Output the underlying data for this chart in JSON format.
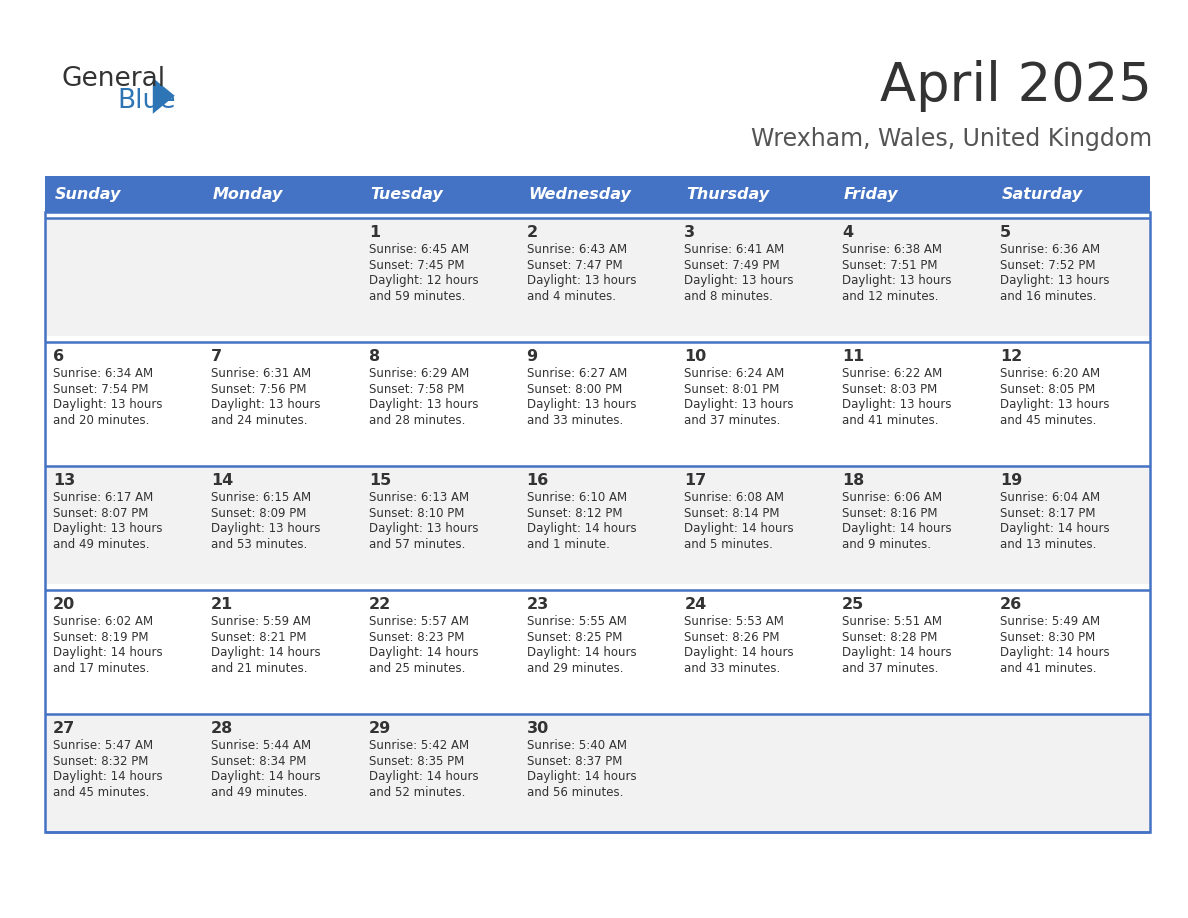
{
  "title": "April 2025",
  "subtitle": "Wrexham, Wales, United Kingdom",
  "days_of_week": [
    "Sunday",
    "Monday",
    "Tuesday",
    "Wednesday",
    "Thursday",
    "Friday",
    "Saturday"
  ],
  "header_bg": "#4472C4",
  "header_text": "#FFFFFF",
  "row_bg_light": "#F2F2F2",
  "row_bg_white": "#FFFFFF",
  "border_color": "#4472C4",
  "text_color": "#333333",
  "title_color": "#333333",
  "subtitle_color": "#555555",
  "logo_black": "#333333",
  "logo_blue": "#2E75B6",
  "weeks": [
    [
      {
        "day": null,
        "sunrise": null,
        "sunset": null,
        "daylight": null
      },
      {
        "day": null,
        "sunrise": null,
        "sunset": null,
        "daylight": null
      },
      {
        "day": 1,
        "sunrise": "6:45 AM",
        "sunset": "7:45 PM",
        "daylight": "12 hours and 59 minutes"
      },
      {
        "day": 2,
        "sunrise": "6:43 AM",
        "sunset": "7:47 PM",
        "daylight": "13 hours and 4 minutes"
      },
      {
        "day": 3,
        "sunrise": "6:41 AM",
        "sunset": "7:49 PM",
        "daylight": "13 hours and 8 minutes"
      },
      {
        "day": 4,
        "sunrise": "6:38 AM",
        "sunset": "7:51 PM",
        "daylight": "13 hours and 12 minutes"
      },
      {
        "day": 5,
        "sunrise": "6:36 AM",
        "sunset": "7:52 PM",
        "daylight": "13 hours and 16 minutes"
      }
    ],
    [
      {
        "day": 6,
        "sunrise": "6:34 AM",
        "sunset": "7:54 PM",
        "daylight": "13 hours and 20 minutes"
      },
      {
        "day": 7,
        "sunrise": "6:31 AM",
        "sunset": "7:56 PM",
        "daylight": "13 hours and 24 minutes"
      },
      {
        "day": 8,
        "sunrise": "6:29 AM",
        "sunset": "7:58 PM",
        "daylight": "13 hours and 28 minutes"
      },
      {
        "day": 9,
        "sunrise": "6:27 AM",
        "sunset": "8:00 PM",
        "daylight": "13 hours and 33 minutes"
      },
      {
        "day": 10,
        "sunrise": "6:24 AM",
        "sunset": "8:01 PM",
        "daylight": "13 hours and 37 minutes"
      },
      {
        "day": 11,
        "sunrise": "6:22 AM",
        "sunset": "8:03 PM",
        "daylight": "13 hours and 41 minutes"
      },
      {
        "day": 12,
        "sunrise": "6:20 AM",
        "sunset": "8:05 PM",
        "daylight": "13 hours and 45 minutes"
      }
    ],
    [
      {
        "day": 13,
        "sunrise": "6:17 AM",
        "sunset": "8:07 PM",
        "daylight": "13 hours and 49 minutes"
      },
      {
        "day": 14,
        "sunrise": "6:15 AM",
        "sunset": "8:09 PM",
        "daylight": "13 hours and 53 minutes"
      },
      {
        "day": 15,
        "sunrise": "6:13 AM",
        "sunset": "8:10 PM",
        "daylight": "13 hours and 57 minutes"
      },
      {
        "day": 16,
        "sunrise": "6:10 AM",
        "sunset": "8:12 PM",
        "daylight": "14 hours and 1 minute"
      },
      {
        "day": 17,
        "sunrise": "6:08 AM",
        "sunset": "8:14 PM",
        "daylight": "14 hours and 5 minutes"
      },
      {
        "day": 18,
        "sunrise": "6:06 AM",
        "sunset": "8:16 PM",
        "daylight": "14 hours and 9 minutes"
      },
      {
        "day": 19,
        "sunrise": "6:04 AM",
        "sunset": "8:17 PM",
        "daylight": "14 hours and 13 minutes"
      }
    ],
    [
      {
        "day": 20,
        "sunrise": "6:02 AM",
        "sunset": "8:19 PM",
        "daylight": "14 hours and 17 minutes"
      },
      {
        "day": 21,
        "sunrise": "5:59 AM",
        "sunset": "8:21 PM",
        "daylight": "14 hours and 21 minutes"
      },
      {
        "day": 22,
        "sunrise": "5:57 AM",
        "sunset": "8:23 PM",
        "daylight": "14 hours and 25 minutes"
      },
      {
        "day": 23,
        "sunrise": "5:55 AM",
        "sunset": "8:25 PM",
        "daylight": "14 hours and 29 minutes"
      },
      {
        "day": 24,
        "sunrise": "5:53 AM",
        "sunset": "8:26 PM",
        "daylight": "14 hours and 33 minutes"
      },
      {
        "day": 25,
        "sunrise": "5:51 AM",
        "sunset": "8:28 PM",
        "daylight": "14 hours and 37 minutes"
      },
      {
        "day": 26,
        "sunrise": "5:49 AM",
        "sunset": "8:30 PM",
        "daylight": "14 hours and 41 minutes"
      }
    ],
    [
      {
        "day": 27,
        "sunrise": "5:47 AM",
        "sunset": "8:32 PM",
        "daylight": "14 hours and 45 minutes"
      },
      {
        "day": 28,
        "sunrise": "5:44 AM",
        "sunset": "8:34 PM",
        "daylight": "14 hours and 49 minutes"
      },
      {
        "day": 29,
        "sunrise": "5:42 AM",
        "sunset": "8:35 PM",
        "daylight": "14 hours and 52 minutes"
      },
      {
        "day": 30,
        "sunrise": "5:40 AM",
        "sunset": "8:37 PM",
        "daylight": "14 hours and 56 minutes"
      },
      {
        "day": null,
        "sunrise": null,
        "sunset": null,
        "daylight": null
      },
      {
        "day": null,
        "sunrise": null,
        "sunset": null,
        "daylight": null
      },
      {
        "day": null,
        "sunrise": null,
        "sunset": null,
        "daylight": null
      }
    ]
  ]
}
